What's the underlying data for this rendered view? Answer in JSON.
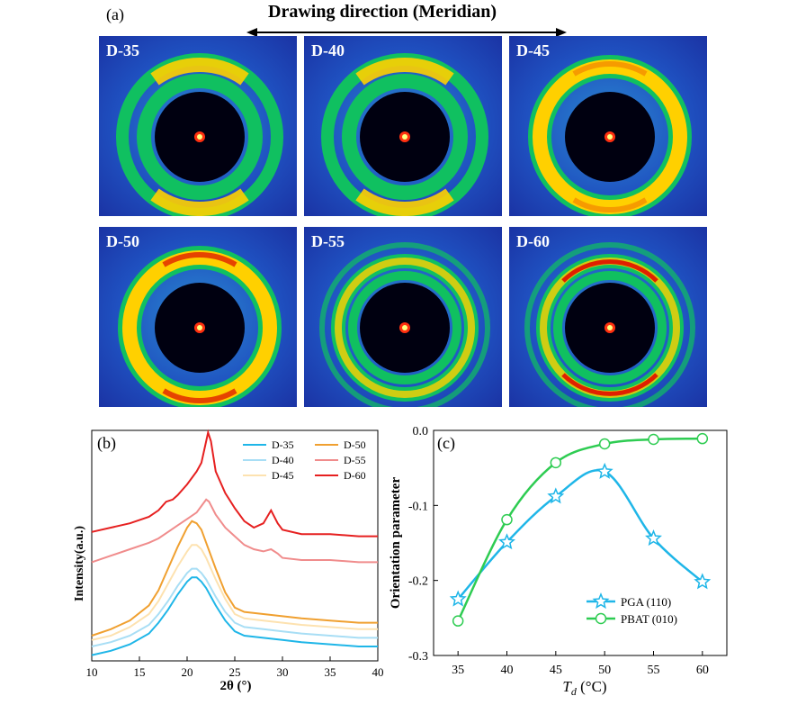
{
  "figure": {
    "panel_a_label": "(a)",
    "panel_b_label": "(b)",
    "panel_c_label": "(c)",
    "heading": "Drawing direction (Meridian)",
    "saxs_tiles": [
      {
        "label": "D-35",
        "pattern": "arcs"
      },
      {
        "label": "D-40",
        "pattern": "arcs"
      },
      {
        "label": "D-45",
        "pattern": "ring"
      },
      {
        "label": "D-50",
        "pattern": "ring"
      },
      {
        "label": "D-55",
        "pattern": "rings"
      },
      {
        "label": "D-60",
        "pattern": "rings"
      }
    ],
    "colors": {
      "background": "#1a2fa0",
      "ring_outer": "#10c060",
      "ring_mid": "#ffd000",
      "ring_peak": "#e02000",
      "core": "#000010"
    }
  },
  "chart_data": [
    {
      "type": "line",
      "title": "",
      "xlabel": "2θ (°)",
      "ylabel": "Intensity(a.u.)",
      "xlim": [
        10,
        40
      ],
      "xticks": [
        10,
        15,
        20,
        25,
        30,
        35,
        40
      ],
      "legend_position": "top-right",
      "series": [
        {
          "name": "D-35",
          "color": "#1fb6e8",
          "x": [
            10,
            12,
            14,
            16,
            17,
            18,
            19,
            20,
            20.5,
            21,
            21.5,
            22,
            23,
            24,
            25,
            26,
            28,
            30,
            32,
            35,
            38,
            40
          ],
          "y": [
            0.01,
            0.03,
            0.06,
            0.11,
            0.16,
            0.22,
            0.29,
            0.35,
            0.37,
            0.37,
            0.35,
            0.32,
            0.24,
            0.17,
            0.12,
            0.1,
            0.09,
            0.08,
            0.07,
            0.06,
            0.05,
            0.05
          ]
        },
        {
          "name": "D-40",
          "color": "#a8def5",
          "x": [
            10,
            12,
            14,
            16,
            17,
            18,
            19,
            20,
            20.5,
            21,
            21.5,
            22,
            23,
            24,
            25,
            26,
            28,
            30,
            32,
            35,
            38,
            40
          ],
          "y": [
            0.05,
            0.07,
            0.1,
            0.15,
            0.2,
            0.26,
            0.33,
            0.39,
            0.41,
            0.41,
            0.39,
            0.36,
            0.28,
            0.21,
            0.16,
            0.14,
            0.13,
            0.12,
            0.11,
            0.1,
            0.09,
            0.09
          ]
        },
        {
          "name": "D-45",
          "color": "#fde2b0",
          "x": [
            10,
            12,
            14,
            16,
            17,
            18,
            19,
            20,
            20.5,
            21,
            21.5,
            22,
            23,
            24,
            25,
            26,
            28,
            30,
            32,
            35,
            38,
            40
          ],
          "y": [
            0.08,
            0.1,
            0.14,
            0.2,
            0.26,
            0.34,
            0.42,
            0.49,
            0.52,
            0.52,
            0.5,
            0.46,
            0.36,
            0.27,
            0.2,
            0.18,
            0.17,
            0.16,
            0.15,
            0.14,
            0.13,
            0.13
          ]
        },
        {
          "name": "D-50",
          "color": "#f0a030",
          "x": [
            10,
            12,
            14,
            16,
            17,
            18,
            19,
            20,
            20.5,
            21,
            21.5,
            22,
            23,
            24,
            25,
            26,
            28,
            30,
            32,
            35,
            38,
            40
          ],
          "y": [
            0.1,
            0.13,
            0.17,
            0.24,
            0.31,
            0.41,
            0.51,
            0.6,
            0.63,
            0.62,
            0.59,
            0.53,
            0.41,
            0.3,
            0.23,
            0.21,
            0.2,
            0.19,
            0.18,
            0.17,
            0.16,
            0.16
          ]
        },
        {
          "name": "D-55",
          "color": "#f08c8c",
          "x": [
            10,
            12,
            14,
            16,
            17,
            18,
            19,
            20,
            21,
            21.5,
            22,
            22.3,
            23,
            24,
            25,
            26,
            27,
            28,
            28.8,
            29.5,
            30,
            32,
            35,
            38,
            40
          ],
          "y": [
            0.44,
            0.47,
            0.5,
            0.53,
            0.55,
            0.58,
            0.61,
            0.64,
            0.67,
            0.7,
            0.73,
            0.72,
            0.66,
            0.6,
            0.56,
            0.52,
            0.5,
            0.49,
            0.5,
            0.48,
            0.46,
            0.45,
            0.45,
            0.44,
            0.44
          ]
        },
        {
          "name": "D-60",
          "color": "#e62020",
          "x": [
            10,
            12,
            14,
            16,
            17,
            17.8,
            18.5,
            19,
            20,
            21,
            21.5,
            22,
            22.2,
            22.5,
            23,
            24,
            25,
            26,
            27,
            28,
            28.8,
            29.5,
            30,
            32,
            35,
            38,
            40
          ],
          "y": [
            0.58,
            0.6,
            0.62,
            0.65,
            0.68,
            0.72,
            0.73,
            0.75,
            0.8,
            0.86,
            0.9,
            1.0,
            1.04,
            1.0,
            0.86,
            0.76,
            0.69,
            0.63,
            0.6,
            0.62,
            0.68,
            0.62,
            0.59,
            0.57,
            0.57,
            0.56,
            0.56
          ]
        }
      ]
    },
    {
      "type": "line",
      "title": "",
      "xlabel": "T_d (°C)",
      "ylabel": "Orientation parameter",
      "xlim": [
        32.5,
        62.5
      ],
      "ylim": [
        -0.3,
        0.0
      ],
      "xticks": [
        35,
        40,
        45,
        50,
        55,
        60
      ],
      "yticks": [
        0.0,
        -0.1,
        -0.2,
        -0.3
      ],
      "grid": false,
      "legend_position": "bottom-right",
      "series": [
        {
          "name": "PGA (110)",
          "marker": "star",
          "color": "#1fb6e8",
          "x": [
            35,
            40,
            45,
            50,
            55,
            60
          ],
          "y": [
            -0.225,
            -0.149,
            -0.088,
            -0.055,
            -0.144,
            -0.202
          ]
        },
        {
          "name": "PBAT (010)",
          "marker": "circle",
          "color": "#2ecc52",
          "x": [
            35,
            40,
            45,
            50,
            55,
            60
          ],
          "y": [
            -0.254,
            -0.119,
            -0.043,
            -0.018,
            -0.012,
            -0.011
          ]
        }
      ]
    }
  ]
}
